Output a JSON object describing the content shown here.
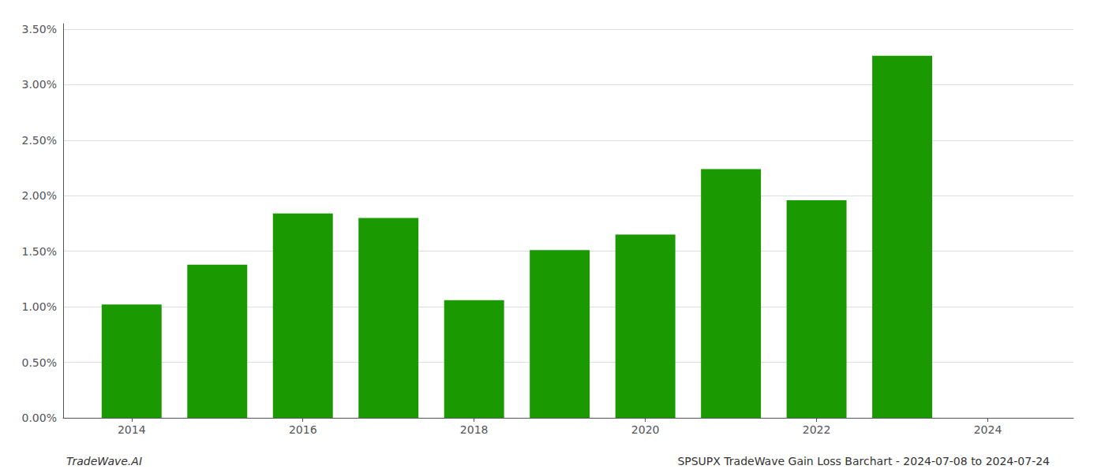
{
  "chart_data": {
    "type": "bar",
    "x": [
      2014,
      2015,
      2016,
      2017,
      2018,
      2019,
      2020,
      2021,
      2022,
      2023
    ],
    "values": [
      0.0102,
      0.0138,
      0.0184,
      0.018,
      0.0106,
      0.0151,
      0.0165,
      0.0224,
      0.0196,
      0.0326
    ],
    "color": "#1a9a00",
    "xlim": [
      2013.2,
      2025.0
    ],
    "ylim": [
      0,
      0.0355
    ],
    "xticks": [
      2014,
      2016,
      2018,
      2020,
      2022,
      2024
    ],
    "yticks": [
      {
        "value": 0.0,
        "label": "0.00%"
      },
      {
        "value": 0.005,
        "label": "0.50%"
      },
      {
        "value": 0.01,
        "label": "1.00%"
      },
      {
        "value": 0.015,
        "label": "1.50%"
      },
      {
        "value": 0.02,
        "label": "2.00%"
      },
      {
        "value": 0.025,
        "label": "2.50%"
      },
      {
        "value": 0.03,
        "label": "3.00%"
      },
      {
        "value": 0.035,
        "label": "3.50%"
      }
    ],
    "grid": true,
    "annotations": [
      "TradeWave.AI",
      "SPSUPX TradeWave Gain Loss Barchart - 2024-07-08 to 2024-07-24"
    ]
  }
}
